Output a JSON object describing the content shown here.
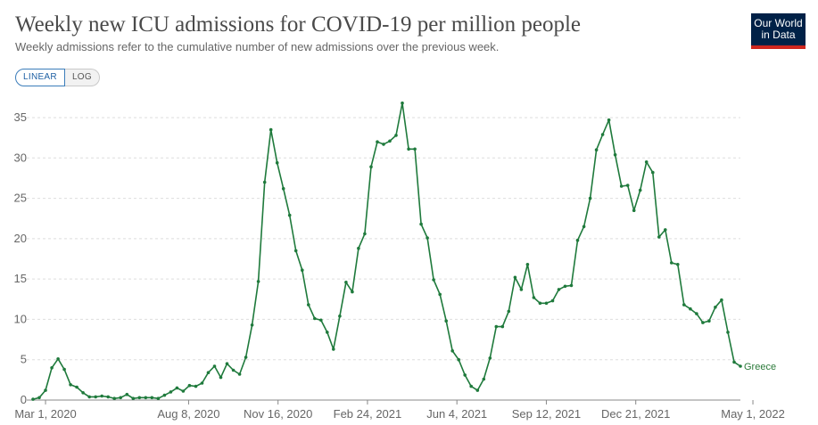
{
  "header": {
    "title": "Weekly new ICU admissions for COVID-19 per million people",
    "subtitle": "Weekly admissions refer to the cumulative number of new admissions over the previous week.",
    "logo_line1": "Our World",
    "logo_line2": "in Data"
  },
  "controls": {
    "linear_label": "LINEAR",
    "log_label": "LOG",
    "selected": "LINEAR"
  },
  "colors": {
    "series": "#1f7a3c",
    "grid": "#dddddd",
    "axis": "#888888"
  },
  "chart_data": {
    "type": "line",
    "title": "Weekly new ICU admissions for COVID-19 per million people",
    "xlabel": "",
    "ylabel": "",
    "ylim": [
      0,
      37
    ],
    "yticks": [
      0,
      5,
      10,
      15,
      20,
      25,
      30,
      35
    ],
    "xticks": [
      {
        "date": "2020-03-01",
        "label": "Mar 1, 2020"
      },
      {
        "date": "2020-08-08",
        "label": "Aug 8, 2020"
      },
      {
        "date": "2020-11-16",
        "label": "Nov 16, 2020"
      },
      {
        "date": "2021-02-24",
        "label": "Feb 24, 2021"
      },
      {
        "date": "2021-06-04",
        "label": "Jun 4, 2021"
      },
      {
        "date": "2021-09-12",
        "label": "Sep 12, 2021"
      },
      {
        "date": "2021-12-21",
        "label": "Dec 21, 2021"
      },
      {
        "date": "2022-05-01",
        "label": "May 1, 2022"
      }
    ],
    "grid": true,
    "series": [
      {
        "name": "Greece",
        "start_date": "2020-02-16",
        "interval_days": 7,
        "values": [
          0.1,
          0.3,
          1.2,
          4.0,
          5.1,
          3.8,
          1.9,
          1.6,
          0.9,
          0.4,
          0.4,
          0.5,
          0.4,
          0.2,
          0.3,
          0.7,
          0.2,
          0.3,
          0.3,
          0.3,
          0.2,
          0.6,
          1.0,
          1.5,
          1.1,
          1.8,
          1.7,
          2.1,
          3.4,
          4.2,
          2.8,
          4.5,
          3.7,
          3.2,
          5.3,
          9.3,
          14.7,
          27.0,
          33.5,
          29.4,
          26.2,
          22.9,
          18.5,
          16.1,
          11.8,
          10.1,
          9.9,
          8.4,
          6.3,
          10.4,
          14.6,
          13.4,
          18.8,
          20.6,
          28.9,
          32.0,
          31.7,
          32.1,
          32.8,
          36.8,
          31.1,
          31.1,
          21.8,
          20.1,
          14.9,
          13.1,
          9.8,
          6.1,
          5.0,
          3.1,
          1.7,
          1.2,
          2.6,
          5.2,
          9.1,
          9.1,
          11.0,
          15.2,
          13.7,
          16.8,
          12.7,
          12.0,
          12.0,
          12.3,
          13.7,
          14.1,
          14.2,
          19.8,
          21.5,
          25.0,
          31.0,
          32.9,
          34.7,
          30.4,
          26.5,
          26.6,
          23.5,
          26.0,
          29.5,
          28.2,
          20.2,
          21.1,
          17.0,
          16.8,
          11.8,
          11.3,
          10.7,
          9.6,
          9.8,
          11.5,
          12.4,
          8.4,
          4.7,
          4.2
        ]
      }
    ]
  }
}
